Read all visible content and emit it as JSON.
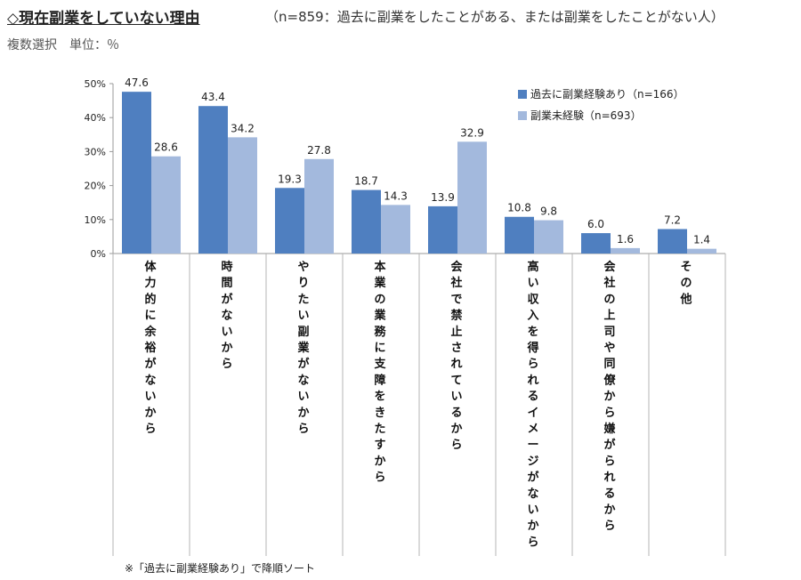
{
  "header": {
    "title": "◇現在副業をしていない理由",
    "subtitle": "（n=859：過去に副業をしたことがある、または副業をしたことがない人）",
    "unit": "複数選択　単位：％"
  },
  "footnote": "※「過去に副業経験あり」で降順ソート",
  "colors": {
    "series1": "#4f7fc0",
    "series2": "#a3b9dd",
    "axis": "#999999"
  },
  "chart_data": {
    "type": "bar",
    "categories": [
      "体力的に余裕がないから",
      "時間がないから",
      "やりたい副業がないから",
      "本業の業務に支障をきたすから",
      "会社で禁止されているから",
      "高い収入を得られるイメージがないから",
      "会社の上司や同僚から嫌がられるから",
      "その他"
    ],
    "series": [
      {
        "name": "過去に副業経験あり（n=166）",
        "values": [
          47.6,
          43.4,
          19.3,
          18.7,
          13.9,
          10.8,
          6.0,
          7.2
        ]
      },
      {
        "name": "副業未経験（n=693）",
        "values": [
          28.6,
          34.2,
          27.8,
          14.3,
          32.9,
          9.8,
          1.6,
          1.4
        ]
      }
    ],
    "ylim": [
      0,
      50
    ],
    "yticks": [
      "0%",
      "10%",
      "20%",
      "30%",
      "40%",
      "50%"
    ],
    "legend": "top-right",
    "grid": false
  }
}
